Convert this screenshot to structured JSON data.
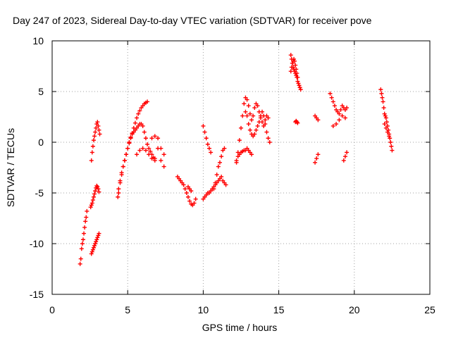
{
  "chart_data": {
    "type": "scatter",
    "title": "Day 247 of 2023, Sidereal Day-to-day VTEC variation (SDTVAR) for receiver pove",
    "xlabel": "GPS time / hours",
    "ylabel": "SDTVAR / TECUs",
    "xlim": [
      0,
      25
    ],
    "ylim": [
      -15,
      10
    ],
    "xticks": [
      0,
      5,
      10,
      15,
      20,
      25
    ],
    "yticks": [
      -15,
      -10,
      -5,
      0,
      5,
      10
    ],
    "xtick_labels": [
      "0",
      "5",
      "10",
      "15",
      "20",
      "25"
    ],
    "ytick_labels": [
      "-15",
      "-10",
      "-5",
      "0",
      "5",
      "10"
    ],
    "grid": true,
    "marker": "plus",
    "colors": {
      "series": "#ff0000",
      "grid": "#a0a0a0",
      "axes": "#000000"
    },
    "series": [
      {
        "name": "SDTVAR",
        "x": [
          1.85,
          1.9,
          1.95,
          2.0,
          2.05,
          2.1,
          2.15,
          2.2,
          2.25,
          2.3,
          2.6,
          2.65,
          2.7,
          2.75,
          2.8,
          2.85,
          2.9,
          2.95,
          3.0,
          3.05,
          3.1,
          3.15,
          2.55,
          2.6,
          2.65,
          2.7,
          2.75,
          2.8,
          2.85,
          2.9,
          2.95,
          3.0,
          3.05,
          3.1,
          2.6,
          2.65,
          2.7,
          2.75,
          2.8,
          2.85,
          2.9,
          2.95,
          3.0,
          3.05,
          3.1,
          4.35,
          4.4,
          4.5,
          4.6,
          4.7,
          4.8,
          4.9,
          5.0,
          5.1,
          5.2,
          5.3,
          5.4,
          5.5,
          5.6,
          5.7,
          5.8,
          5.9,
          6.0,
          6.1,
          6.2,
          6.3,
          4.4,
          4.5,
          4.6,
          4.7,
          4.8,
          4.9,
          5.0,
          5.1,
          5.2,
          5.3,
          5.4,
          5.5,
          5.6,
          5.7,
          5.8,
          5.9,
          6.0,
          6.1,
          6.2,
          6.3,
          6.4,
          6.5,
          6.6,
          6.7,
          6.8,
          5.6,
          5.8,
          6.0,
          6.2,
          6.4,
          6.6,
          6.8,
          7.0,
          7.2,
          7.4,
          6.6,
          6.8,
          7.0,
          7.2,
          7.4,
          8.3,
          8.4,
          8.5,
          8.6,
          8.7,
          8.8,
          8.9,
          9.0,
          9.1,
          9.2,
          9.3,
          9.4,
          9.5,
          9.0,
          9.1,
          9.2,
          10.0,
          10.1,
          10.2,
          10.3,
          10.4,
          10.5,
          10.0,
          10.1,
          10.2,
          10.3,
          10.4,
          10.5,
          10.6,
          10.7,
          10.8,
          10.9,
          11.0,
          11.1,
          11.2,
          11.3,
          11.4,
          11.5,
          10.7,
          10.8,
          10.9,
          11.0,
          11.1,
          11.2,
          11.3,
          11.4,
          12.2,
          12.3,
          12.4,
          12.5,
          12.6,
          12.7,
          12.8,
          12.9,
          13.0,
          13.1,
          13.2,
          13.3,
          13.4,
          13.5,
          13.6,
          13.7,
          13.8,
          13.9,
          14.0,
          14.1,
          14.2,
          14.3,
          12.2,
          12.3,
          12.4,
          12.5,
          12.6,
          12.7,
          12.8,
          12.9,
          13.0,
          13.1,
          13.2,
          12.8,
          12.9,
          13.0,
          13.1,
          13.2,
          13.3,
          13.4,
          13.5,
          13.6,
          13.7,
          13.8,
          13.9,
          14.0,
          14.1,
          14.2,
          14.3,
          14.4,
          15.8,
          15.85,
          15.9,
          15.95,
          16.0,
          16.05,
          16.1,
          16.15,
          16.2,
          16.25,
          16.3,
          16.35,
          16.4,
          16.45,
          15.8,
          15.85,
          15.9,
          15.95,
          16.0,
          16.05,
          16.1,
          16.15,
          16.2,
          16.25,
          16.1,
          16.15,
          16.2,
          16.25,
          17.4,
          17.5,
          17.6,
          17.4,
          17.5,
          17.6,
          18.4,
          18.5,
          18.6,
          18.7,
          18.8,
          18.9,
          19.0,
          19.1,
          19.2,
          19.3,
          19.4,
          19.5,
          18.6,
          18.8,
          19.0,
          19.2,
          19.4,
          19.3,
          19.4,
          19.5,
          21.75,
          21.8,
          21.85,
          21.9,
          21.95,
          22.0,
          22.05,
          22.1,
          22.15,
          22.2,
          22.25,
          22.3,
          22.35,
          22.4,
          22.45,
          22.5,
          22.0,
          22.1,
          22.2,
          22.3
        ],
        "y": [
          -12.0,
          -11.5,
          -10.5,
          -10.0,
          -9.6,
          -9.0,
          -8.4,
          -7.8,
          -7.4,
          -6.8,
          -1.8,
          -1.0,
          -0.4,
          0.2,
          0.6,
          1.0,
          1.4,
          1.8,
          2.0,
          1.6,
          1.2,
          0.8,
          -6.4,
          -6.2,
          -6.0,
          -5.7,
          -5.4,
          -5.1,
          -4.8,
          -4.5,
          -4.3,
          -4.4,
          -4.6,
          -4.9,
          -11.0,
          -10.8,
          -10.6,
          -10.4,
          -10.2,
          -10.0,
          -9.8,
          -9.6,
          -9.4,
          -9.2,
          -9.0,
          -5.4,
          -4.6,
          -3.8,
          -3.0,
          -2.4,
          -1.8,
          -1.2,
          -0.6,
          -0.1,
          0.4,
          0.9,
          1.4,
          1.9,
          2.4,
          2.8,
          3.1,
          3.4,
          3.6,
          3.8,
          3.9,
          4.0,
          -5.0,
          -4.0,
          -3.2,
          -2.4,
          -1.8,
          -1.2,
          -0.6,
          0.0,
          0.5,
          0.8,
          1.0,
          1.2,
          1.4,
          1.6,
          1.8,
          1.8,
          1.6,
          1.0,
          0.4,
          -0.2,
          -0.6,
          -0.9,
          -1.2,
          -1.5,
          -1.8,
          -1.2,
          -0.8,
          -0.6,
          -0.8,
          -1.2,
          -1.6,
          -1.6,
          -0.6,
          -1.8,
          -2.4,
          0.4,
          0.6,
          0.4,
          -0.6,
          -1.2,
          -3.4,
          -3.6,
          -3.8,
          -4.0,
          -4.2,
          -4.6,
          -5.0,
          -5.4,
          -5.8,
          -6.1,
          -6.2,
          -6.0,
          -5.6,
          -4.4,
          -4.6,
          -4.8,
          1.6,
          1.0,
          0.4,
          -0.2,
          -0.6,
          -1.0,
          -5.6,
          -5.4,
          -5.2,
          -5.0,
          -5.0,
          -4.8,
          -4.6,
          -4.4,
          -4.2,
          -4.0,
          -3.8,
          -3.6,
          -3.4,
          -3.8,
          -4.0,
          -4.2,
          -4.6,
          -4.0,
          -3.2,
          -2.4,
          -2.0,
          -1.4,
          -0.8,
          -0.6,
          -2.0,
          -1.0,
          0.2,
          1.4,
          2.6,
          3.8,
          4.4,
          4.2,
          3.6,
          2.8,
          2.2,
          2.6,
          3.4,
          3.8,
          3.6,
          3.0,
          2.4,
          2.0,
          1.6,
          2.2,
          2.6,
          2.4,
          -1.8,
          -1.4,
          -1.2,
          -1.0,
          -0.9,
          -0.8,
          -0.8,
          -0.6,
          -0.8,
          -1.0,
          -1.2,
          3.0,
          2.6,
          1.8,
          1.2,
          0.8,
          0.6,
          0.8,
          1.2,
          1.6,
          2.0,
          2.6,
          3.0,
          2.6,
          1.8,
          1.0,
          0.4,
          0.0,
          8.6,
          8.2,
          7.8,
          7.4,
          7.2,
          7.0,
          6.8,
          6.6,
          6.4,
          6.0,
          5.8,
          5.6,
          5.4,
          5.2,
          7.0,
          7.4,
          7.8,
          8.0,
          8.2,
          8.0,
          7.6,
          7.2,
          6.8,
          6.4,
          2.0,
          2.1,
          2.0,
          1.9,
          -2.0,
          -1.6,
          -1.2,
          2.6,
          2.4,
          2.2,
          4.8,
          4.4,
          4.0,
          3.6,
          3.2,
          3.0,
          2.8,
          3.2,
          3.6,
          3.4,
          3.2,
          3.4,
          1.6,
          1.8,
          2.2,
          2.6,
          2.4,
          -1.8,
          -1.4,
          -1.0,
          5.2,
          4.8,
          4.4,
          4.0,
          3.4,
          2.8,
          2.6,
          2.4,
          2.0,
          1.6,
          1.2,
          0.8,
          0.4,
          0.0,
          -0.4,
          -0.8,
          1.8,
          1.4,
          1.0,
          0.6
        ]
      }
    ]
  }
}
